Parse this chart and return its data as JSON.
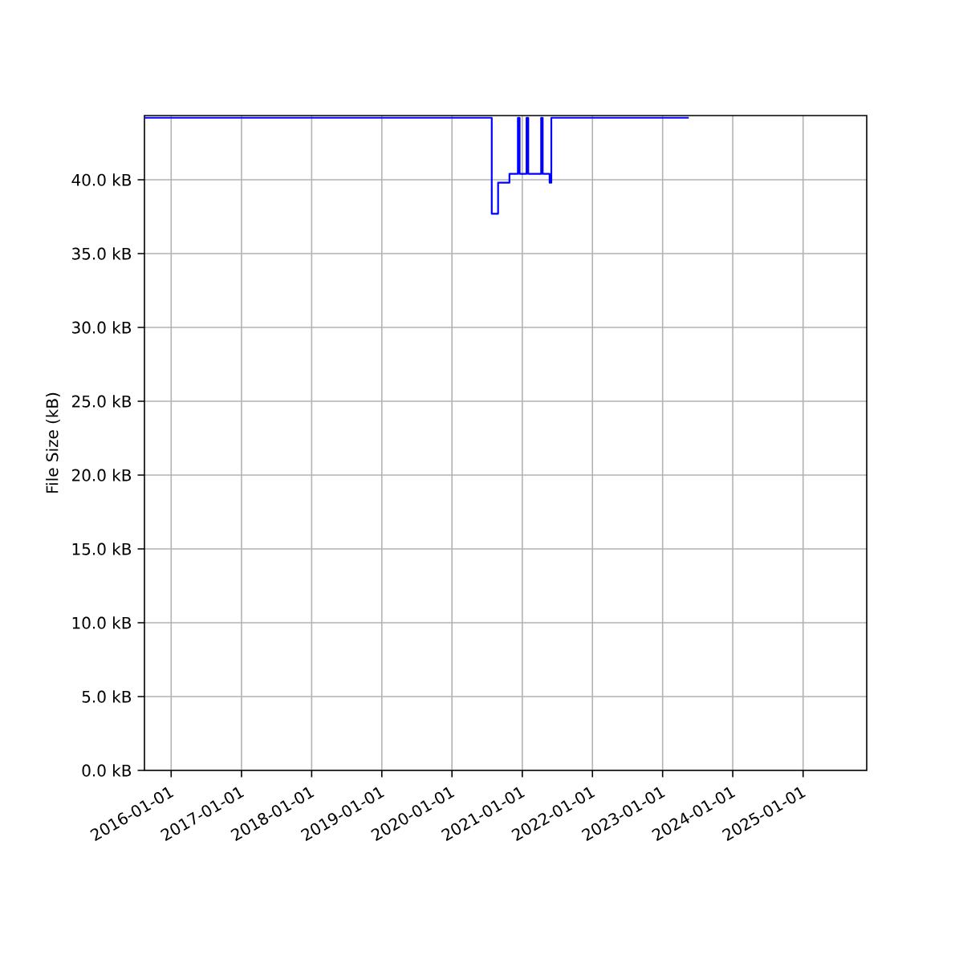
{
  "chart_data": {
    "type": "step",
    "ylabel": "File Size (kB)",
    "x": [
      "2015-08-15",
      "2020-07-26",
      "2020-08-28",
      "2020-10-26",
      "2020-12-09",
      "2020-12-18",
      "2021-01-23",
      "2021-02-01",
      "2021-04-09",
      "2021-04-17",
      "2021-05-23",
      "2021-06-01",
      "2023-05-17"
    ],
    "series": [
      {
        "color": "#0000ff",
        "values": [
          44.2,
          37.7,
          39.8,
          40.4,
          44.2,
          40.4,
          44.2,
          40.4,
          44.2,
          40.4,
          39.8,
          44.2,
          44.2
        ]
      }
    ],
    "xlim": [
      "2015-08-15",
      "2025-11-28"
    ],
    "xticks": [
      "2016-01-01",
      "2017-01-01",
      "2018-01-01",
      "2019-01-01",
      "2020-01-01",
      "2021-01-01",
      "2022-01-01",
      "2023-01-01",
      "2024-01-01",
      "2025-01-01"
    ],
    "ylim": [
      0,
      44.35
    ],
    "yticks": [
      {
        "value": 0,
        "label": "0.0 kB"
      },
      {
        "value": 5,
        "label": "5.0 kB"
      },
      {
        "value": 10,
        "label": "10.0 kB"
      },
      {
        "value": 15,
        "label": "15.0 kB"
      },
      {
        "value": 20,
        "label": "20.0 kB"
      },
      {
        "value": 25,
        "label": "25.0 kB"
      },
      {
        "value": 30,
        "label": "30.0 kB"
      },
      {
        "value": 35,
        "label": "35.0 kB"
      },
      {
        "value": 40,
        "label": "40.0 kB"
      }
    ],
    "grid": true,
    "marker": "none",
    "line_style": "solid"
  }
}
